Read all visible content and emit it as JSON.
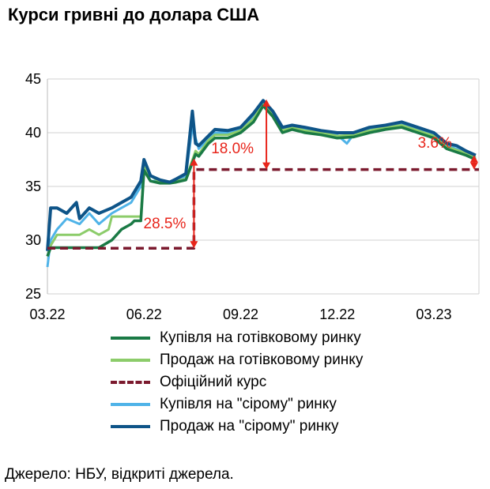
{
  "title": "Курси гривні до долара США",
  "source": "Джерело: НБУ, відкриті джерела.",
  "chart_data": {
    "type": "line",
    "ylim": [
      25,
      45
    ],
    "yticks": [
      25,
      30,
      35,
      40,
      45
    ],
    "xticks": [
      "03.22",
      "06.22",
      "09.22",
      "12.22",
      "03.23"
    ],
    "xlim": [
      0,
      13.4
    ],
    "grid": "horizontal",
    "legend_position": "bottom",
    "series": [
      {
        "name": "Купівля на готівковому ринку",
        "color": "#1a7a45",
        "style": "solid",
        "x": [
          0,
          0.1,
          0.3,
          1.0,
          1.3,
          1.6,
          2.0,
          2.3,
          2.6,
          2.7,
          2.9,
          3.0,
          3.2,
          3.5,
          3.8,
          4.0,
          4.3,
          4.6,
          4.7,
          5.0,
          5.2,
          5.6,
          6.0,
          6.4,
          6.7,
          7.0,
          7.3,
          7.6,
          8.0,
          8.5,
          9.0,
          9.5,
          10.0,
          10.5,
          11.0,
          11.5,
          12.0,
          12.4,
          12.7,
          13.0,
          13.3
        ],
        "y": [
          28.5,
          29.3,
          29.3,
          29.3,
          29.3,
          29.3,
          30.0,
          31.0,
          31.5,
          31.8,
          31.8,
          36.5,
          35.5,
          35.3,
          35.3,
          35.4,
          35.6,
          38.0,
          37.8,
          39.0,
          39.5,
          39.5,
          40.0,
          41.0,
          42.5,
          41.5,
          40.0,
          40.3,
          40.0,
          39.8,
          39.5,
          39.6,
          40.0,
          40.3,
          40.5,
          40.0,
          39.5,
          38.5,
          38.2,
          37.9,
          37.5
        ]
      },
      {
        "name": "Продаж на готівковому ринку",
        "color": "#8ccc6a",
        "style": "solid",
        "x": [
          0,
          0.1,
          0.3,
          1.0,
          1.3,
          1.6,
          1.9,
          2.0,
          2.3,
          2.6,
          2.9,
          3.0,
          3.2,
          3.5,
          3.8,
          4.0,
          4.3,
          4.6,
          4.7,
          5.0,
          5.2,
          5.6,
          6.0,
          6.4,
          6.7,
          7.0,
          7.3,
          7.6,
          8.0,
          8.5,
          9.0,
          9.5,
          10.0,
          10.5,
          11.0,
          11.5,
          12.0,
          12.4,
          12.7,
          13.0,
          13.3
        ],
        "y": [
          28.5,
          29.5,
          30.5,
          30.5,
          31.0,
          30.5,
          31.0,
          32.2,
          32.2,
          32.2,
          32.2,
          36.8,
          36.0,
          35.4,
          35.4,
          35.5,
          35.7,
          38.3,
          38.0,
          39.3,
          39.8,
          39.8,
          40.2,
          41.3,
          42.7,
          41.8,
          40.2,
          40.5,
          40.2,
          40.0,
          39.7,
          39.8,
          40.2,
          40.5,
          40.7,
          40.2,
          39.7,
          38.7,
          38.4,
          38.1,
          37.7
        ]
      },
      {
        "name": "Офіційний курс",
        "color": "#7b1a2e",
        "style": "dashed",
        "x": [
          0,
          4.55,
          4.55,
          13.4
        ],
        "y": [
          29.25,
          29.25,
          36.57,
          36.57
        ]
      },
      {
        "name": "Купівля на \"сірому\" ринку",
        "color": "#4fb3e8",
        "style": "solid",
        "x": [
          0,
          0.1,
          0.3,
          0.6,
          1.0,
          1.3,
          1.6,
          2.0,
          2.3,
          2.6,
          2.9,
          3.0,
          3.2,
          3.5,
          3.8,
          4.0,
          4.3,
          4.5,
          4.7,
          5.0,
          5.2,
          5.6,
          6.0,
          6.4,
          6.7,
          7.0,
          7.3,
          7.6,
          8.0,
          8.5,
          9.0,
          9.3,
          9.5,
          10.0,
          10.5,
          11.0,
          11.5,
          12.0,
          12.2,
          12.4,
          12.7,
          13.0,
          13.3
        ],
        "y": [
          27.5,
          30.0,
          31.0,
          32.0,
          31.5,
          32.5,
          31.5,
          32.5,
          33.0,
          33.5,
          35.0,
          37.0,
          35.5,
          35.5,
          35.3,
          35.5,
          36.0,
          40.5,
          38.5,
          39.5,
          40.0,
          40.0,
          40.3,
          41.5,
          42.8,
          41.8,
          40.3,
          40.5,
          40.3,
          40.0,
          39.8,
          39.0,
          39.8,
          40.3,
          40.5,
          40.8,
          40.3,
          39.8,
          39.5,
          38.8,
          38.5,
          38.0,
          37.6
        ]
      },
      {
        "name": "Продаж на \"сірому\" ринку",
        "color": "#0e5488",
        "style": "solid",
        "x": [
          0,
          0.1,
          0.3,
          0.6,
          0.9,
          1.0,
          1.3,
          1.6,
          2.0,
          2.3,
          2.6,
          2.9,
          3.0,
          3.2,
          3.5,
          3.8,
          4.0,
          4.3,
          4.5,
          4.6,
          4.7,
          5.0,
          5.2,
          5.6,
          6.0,
          6.4,
          6.7,
          7.0,
          7.3,
          7.6,
          8.0,
          8.5,
          9.0,
          9.5,
          10.0,
          10.5,
          11.0,
          11.5,
          12.0,
          12.4,
          12.7,
          13.0,
          13.3
        ],
        "y": [
          29.0,
          33.0,
          33.0,
          32.5,
          33.5,
          32.0,
          33.0,
          32.5,
          33.0,
          33.5,
          34.0,
          35.5,
          37.5,
          36.0,
          35.6,
          35.4,
          35.7,
          36.2,
          42.0,
          39.0,
          38.8,
          39.7,
          40.3,
          40.2,
          40.5,
          41.8,
          43.0,
          42.0,
          40.5,
          40.7,
          40.5,
          40.2,
          40.0,
          40.0,
          40.5,
          40.7,
          41.0,
          40.5,
          40.0,
          39.0,
          38.8,
          38.3,
          37.9
        ]
      }
    ],
    "annotations": [
      {
        "label": "28.5%",
        "x": 4.55,
        "from": 29.25,
        "to": 37.6
      },
      {
        "label": "18.0%",
        "x": 6.8,
        "from": 36.57,
        "to": 43.1
      },
      {
        "label": "3.6%",
        "x": 13.25,
        "from": 36.57,
        "to": 37.9
      }
    ]
  }
}
